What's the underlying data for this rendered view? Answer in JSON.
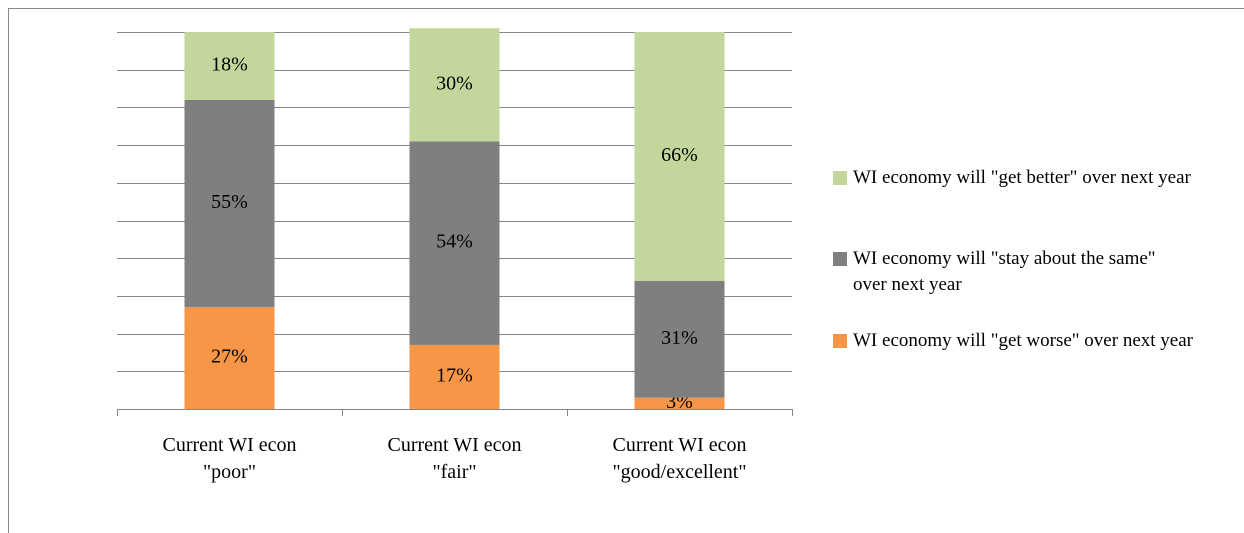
{
  "chart_data": {
    "type": "stacked_bar",
    "categories": [
      "Current WI econ\n\"poor\"",
      "Current WI econ\n\"fair\"",
      "Current WI econ\n\"good/excellent\""
    ],
    "series": [
      {
        "name": "WI economy will \"get worse\" over next year",
        "color": "#f79646",
        "values": [
          27,
          17,
          3
        ],
        "value_labels": [
          "27%",
          "17%",
          "3%"
        ]
      },
      {
        "name": "WI economy will \"stay about the same\" over next year",
        "color": "#7f7f7f",
        "values": [
          55,
          54,
          31
        ],
        "value_labels": [
          "55%",
          "54%",
          "31%"
        ]
      },
      {
        "name": "WI economy will \"get better\" over next year",
        "color": "#c3d69b",
        "values": [
          18,
          30,
          66
        ],
        "value_labels": [
          "18%",
          "30%",
          "66%"
        ]
      }
    ],
    "ylim": [
      0,
      100
    ],
    "yticks": [
      0,
      10,
      20,
      30,
      40,
      50,
      60,
      70,
      80,
      90,
      100
    ],
    "show_ytick_labels": false,
    "grid": true,
    "legend": "right"
  }
}
